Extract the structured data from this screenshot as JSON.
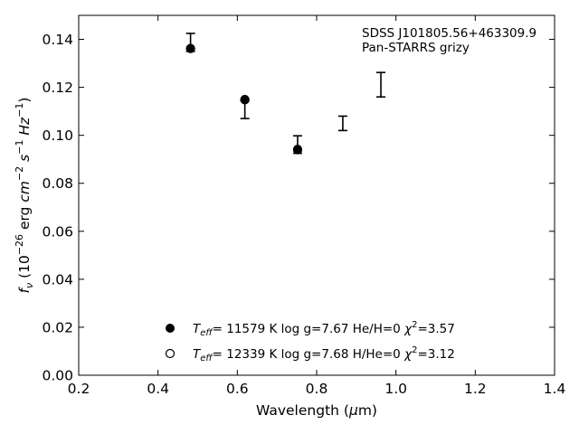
{
  "chart_data": {
    "type": "scatter",
    "xlabel": "Wavelength (μm)",
    "ylabel": "f_ν (10^-26 erg cm^-2 s^-1 Hz^-1)",
    "xlim": [
      0.2,
      1.4
    ],
    "ylim": [
      0.0,
      0.15
    ],
    "x_ticks": [
      "0.2",
      "0.4",
      "0.6",
      "0.8",
      "1.0",
      "1.2",
      "1.4"
    ],
    "y_ticks": [
      "0.00",
      "0.02",
      "0.04",
      "0.06",
      "0.08",
      "0.10",
      "0.12",
      "0.14"
    ],
    "grid": false,
    "annotation": [
      "SDSS J101805.56+463309.9",
      "Pan-STARRS grizy"
    ],
    "observed": {
      "x": [
        0.482,
        0.619,
        0.752,
        0.866,
        0.962
      ],
      "low": [
        0.135,
        0.107,
        0.0925,
        0.102,
        0.116
      ],
      "high": [
        0.1425,
        0.1145,
        0.0998,
        0.108,
        0.1262
      ]
    },
    "series": [
      {
        "name": "T_eff= 11579 K  log g=7.67  He/H=0  χ²=3.57",
        "marker": "filled-circle",
        "x": [
          0.482,
          0.619,
          0.752
        ],
        "y": [
          0.1362,
          0.115,
          0.0942
        ]
      },
      {
        "name": "T_eff= 12339 K  log g=7.68  H/He=0  χ²=3.12",
        "marker": "open-circle",
        "x": [
          0.482,
          0.619,
          0.752
        ],
        "y": [
          0.1362,
          0.1148,
          0.094
        ]
      }
    ],
    "legend_location": "lower-center"
  }
}
